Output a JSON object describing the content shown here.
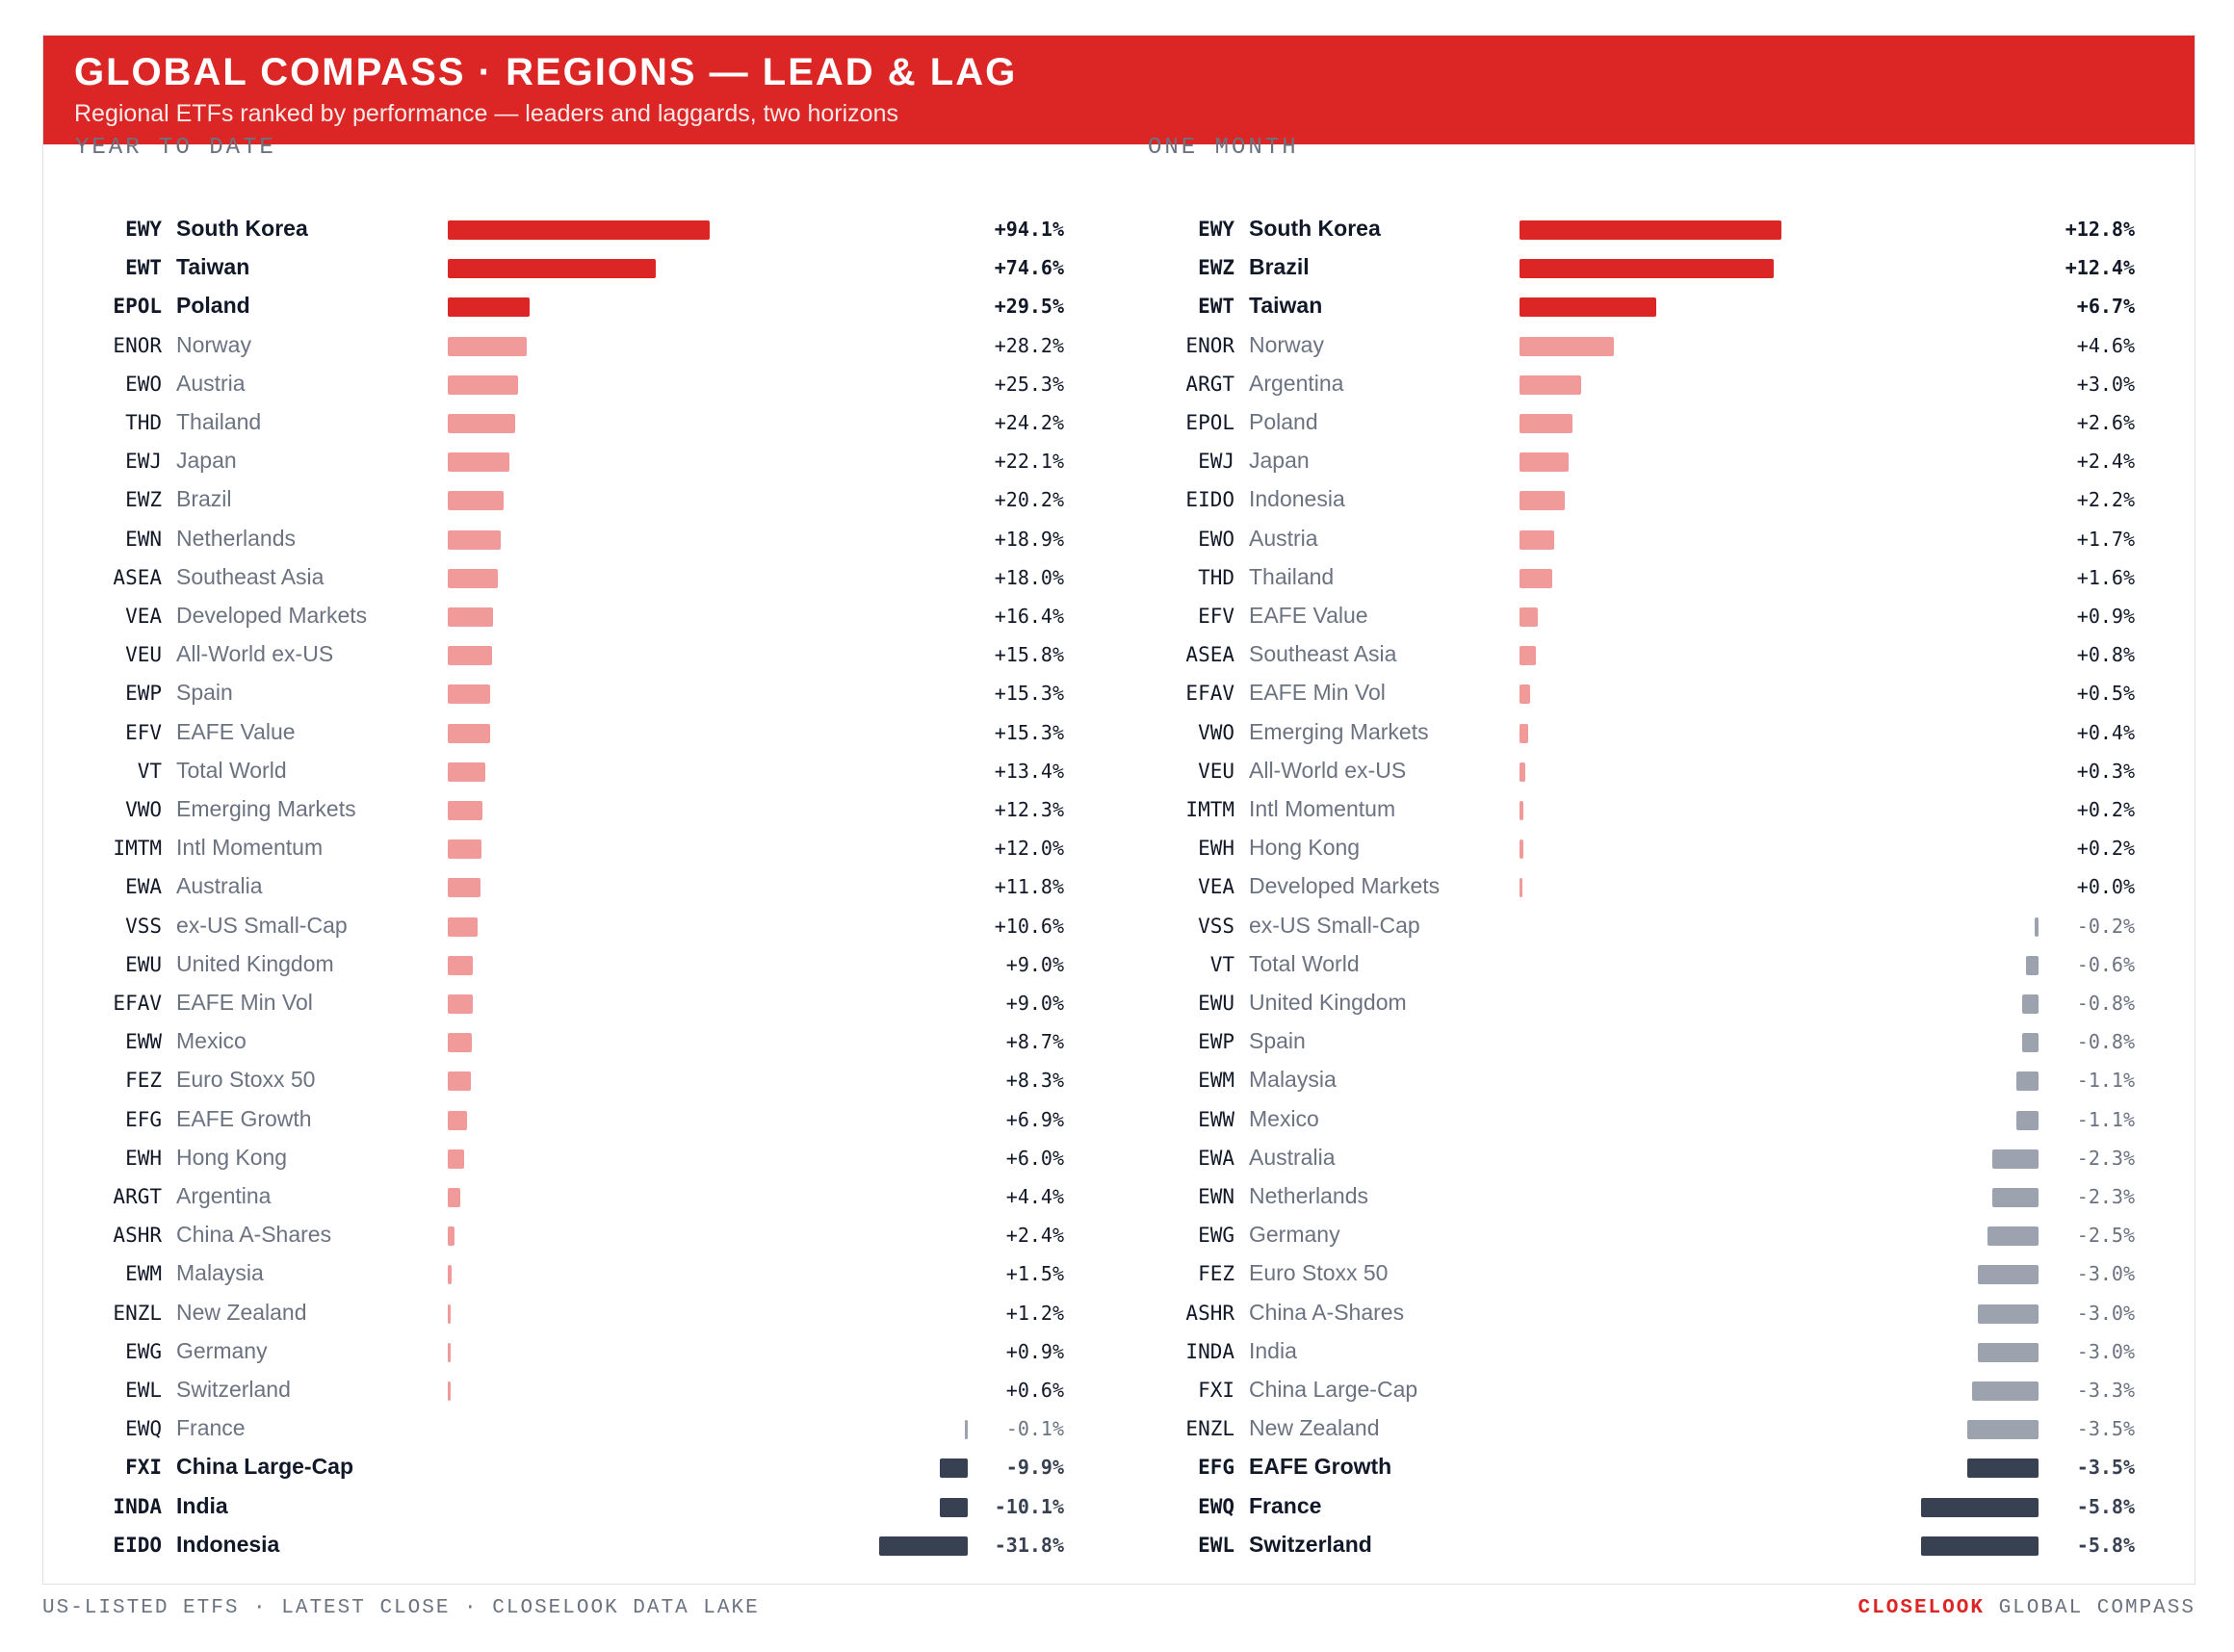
{
  "header": {
    "title": "GLOBAL COMPASS · REGIONS — LEAD & LAG",
    "subtitle": "Regional ETFs ranked by performance — leaders and laggards, two horizons"
  },
  "colors": {
    "header_bg": "#dc2626",
    "leader": "#dc2626",
    "positive": "#f09a9a",
    "negative": "#9ca3af",
    "laggard": "#374151"
  },
  "chart_data": [
    {
      "type": "bar",
      "title": "YEAR TO DATE",
      "unit": "%",
      "rows": [
        {
          "ticker": "EWY",
          "name": "South Korea",
          "value": 94.1,
          "label": "+94.1%"
        },
        {
          "ticker": "EWT",
          "name": "Taiwan",
          "value": 74.6,
          "label": "+74.6%"
        },
        {
          "ticker": "EPOL",
          "name": "Poland",
          "value": 29.5,
          "label": "+29.5%"
        },
        {
          "ticker": "ENOR",
          "name": "Norway",
          "value": 28.2,
          "label": "+28.2%"
        },
        {
          "ticker": "EWO",
          "name": "Austria",
          "value": 25.3,
          "label": "+25.3%"
        },
        {
          "ticker": "THD",
          "name": "Thailand",
          "value": 24.2,
          "label": "+24.2%"
        },
        {
          "ticker": "EWJ",
          "name": "Japan",
          "value": 22.1,
          "label": "+22.1%"
        },
        {
          "ticker": "EWZ",
          "name": "Brazil",
          "value": 20.2,
          "label": "+20.2%"
        },
        {
          "ticker": "EWN",
          "name": "Netherlands",
          "value": 18.9,
          "label": "+18.9%"
        },
        {
          "ticker": "ASEA",
          "name": "Southeast Asia",
          "value": 18.0,
          "label": "+18.0%"
        },
        {
          "ticker": "VEA",
          "name": "Developed Markets",
          "value": 16.4,
          "label": "+16.4%"
        },
        {
          "ticker": "VEU",
          "name": "All-World ex-US",
          "value": 15.8,
          "label": "+15.8%"
        },
        {
          "ticker": "EWP",
          "name": "Spain",
          "value": 15.3,
          "label": "+15.3%"
        },
        {
          "ticker": "EFV",
          "name": "EAFE Value",
          "value": 15.3,
          "label": "+15.3%"
        },
        {
          "ticker": "VT",
          "name": "Total World",
          "value": 13.4,
          "label": "+13.4%"
        },
        {
          "ticker": "VWO",
          "name": "Emerging Markets",
          "value": 12.3,
          "label": "+12.3%"
        },
        {
          "ticker": "IMTM",
          "name": "Intl Momentum",
          "value": 12.0,
          "label": "+12.0%"
        },
        {
          "ticker": "EWA",
          "name": "Australia",
          "value": 11.8,
          "label": "+11.8%"
        },
        {
          "ticker": "VSS",
          "name": "ex-US Small-Cap",
          "value": 10.6,
          "label": "+10.6%"
        },
        {
          "ticker": "EWU",
          "name": "United Kingdom",
          "value": 9.0,
          "label": "+9.0%"
        },
        {
          "ticker": "EFAV",
          "name": "EAFE Min Vol",
          "value": 9.0,
          "label": "+9.0%"
        },
        {
          "ticker": "EWW",
          "name": "Mexico",
          "value": 8.7,
          "label": "+8.7%"
        },
        {
          "ticker": "FEZ",
          "name": "Euro Stoxx 50",
          "value": 8.3,
          "label": "+8.3%"
        },
        {
          "ticker": "EFG",
          "name": "EAFE Growth",
          "value": 6.9,
          "label": "+6.9%"
        },
        {
          "ticker": "EWH",
          "name": "Hong Kong",
          "value": 6.0,
          "label": "+6.0%"
        },
        {
          "ticker": "ARGT",
          "name": "Argentina",
          "value": 4.4,
          "label": "+4.4%"
        },
        {
          "ticker": "ASHR",
          "name": "China A-Shares",
          "value": 2.4,
          "label": "+2.4%"
        },
        {
          "ticker": "EWM",
          "name": "Malaysia",
          "value": 1.5,
          "label": "+1.5%"
        },
        {
          "ticker": "ENZL",
          "name": "New Zealand",
          "value": 1.2,
          "label": "+1.2%"
        },
        {
          "ticker": "EWG",
          "name": "Germany",
          "value": 0.9,
          "label": "+0.9%"
        },
        {
          "ticker": "EWL",
          "name": "Switzerland",
          "value": 0.6,
          "label": "+0.6%"
        },
        {
          "ticker": "EWQ",
          "name": "France",
          "value": -0.1,
          "label": "-0.1%"
        },
        {
          "ticker": "FXI",
          "name": "China Large-Cap",
          "value": -9.9,
          "label": "-9.9%"
        },
        {
          "ticker": "INDA",
          "name": "India",
          "value": -10.1,
          "label": "-10.1%"
        },
        {
          "ticker": "EIDO",
          "name": "Indonesia",
          "value": -31.8,
          "label": "-31.8%"
        }
      ]
    },
    {
      "type": "bar",
      "title": "ONE MONTH",
      "unit": "%",
      "rows": [
        {
          "ticker": "EWY",
          "name": "South Korea",
          "value": 12.8,
          "label": "+12.8%"
        },
        {
          "ticker": "EWZ",
          "name": "Brazil",
          "value": 12.4,
          "label": "+12.4%"
        },
        {
          "ticker": "EWT",
          "name": "Taiwan",
          "value": 6.7,
          "label": "+6.7%"
        },
        {
          "ticker": "ENOR",
          "name": "Norway",
          "value": 4.6,
          "label": "+4.6%"
        },
        {
          "ticker": "ARGT",
          "name": "Argentina",
          "value": 3.0,
          "label": "+3.0%"
        },
        {
          "ticker": "EPOL",
          "name": "Poland",
          "value": 2.6,
          "label": "+2.6%"
        },
        {
          "ticker": "EWJ",
          "name": "Japan",
          "value": 2.4,
          "label": "+2.4%"
        },
        {
          "ticker": "EIDO",
          "name": "Indonesia",
          "value": 2.2,
          "label": "+2.2%"
        },
        {
          "ticker": "EWO",
          "name": "Austria",
          "value": 1.7,
          "label": "+1.7%"
        },
        {
          "ticker": "THD",
          "name": "Thailand",
          "value": 1.6,
          "label": "+1.6%"
        },
        {
          "ticker": "EFV",
          "name": "EAFE Value",
          "value": 0.9,
          "label": "+0.9%"
        },
        {
          "ticker": "ASEA",
          "name": "Southeast Asia",
          "value": 0.8,
          "label": "+0.8%"
        },
        {
          "ticker": "EFAV",
          "name": "EAFE Min Vol",
          "value": 0.5,
          "label": "+0.5%"
        },
        {
          "ticker": "VWO",
          "name": "Emerging Markets",
          "value": 0.4,
          "label": "+0.4%"
        },
        {
          "ticker": "VEU",
          "name": "All-World ex-US",
          "value": 0.3,
          "label": "+0.3%"
        },
        {
          "ticker": "IMTM",
          "name": "Intl Momentum",
          "value": 0.2,
          "label": "+0.2%"
        },
        {
          "ticker": "EWH",
          "name": "Hong Kong",
          "value": 0.2,
          "label": "+0.2%"
        },
        {
          "ticker": "VEA",
          "name": "Developed Markets",
          "value": 0.0,
          "label": "+0.0%"
        },
        {
          "ticker": "VSS",
          "name": "ex-US Small-Cap",
          "value": -0.2,
          "label": "-0.2%"
        },
        {
          "ticker": "VT",
          "name": "Total World",
          "value": -0.6,
          "label": "-0.6%"
        },
        {
          "ticker": "EWU",
          "name": "United Kingdom",
          "value": -0.8,
          "label": "-0.8%"
        },
        {
          "ticker": "EWP",
          "name": "Spain",
          "value": -0.8,
          "label": "-0.8%"
        },
        {
          "ticker": "EWM",
          "name": "Malaysia",
          "value": -1.1,
          "label": "-1.1%"
        },
        {
          "ticker": "EWW",
          "name": "Mexico",
          "value": -1.1,
          "label": "-1.1%"
        },
        {
          "ticker": "EWA",
          "name": "Australia",
          "value": -2.3,
          "label": "-2.3%"
        },
        {
          "ticker": "EWN",
          "name": "Netherlands",
          "value": -2.3,
          "label": "-2.3%"
        },
        {
          "ticker": "EWG",
          "name": "Germany",
          "value": -2.5,
          "label": "-2.5%"
        },
        {
          "ticker": "FEZ",
          "name": "Euro Stoxx 50",
          "value": -3.0,
          "label": "-3.0%"
        },
        {
          "ticker": "ASHR",
          "name": "China A-Shares",
          "value": -3.0,
          "label": "-3.0%"
        },
        {
          "ticker": "INDA",
          "name": "India",
          "value": -3.0,
          "label": "-3.0%"
        },
        {
          "ticker": "FXI",
          "name": "China Large-Cap",
          "value": -3.3,
          "label": "-3.3%"
        },
        {
          "ticker": "ENZL",
          "name": "New Zealand",
          "value": -3.5,
          "label": "-3.5%"
        },
        {
          "ticker": "EFG",
          "name": "EAFE Growth",
          "value": -3.5,
          "label": "-3.5%"
        },
        {
          "ticker": "EWQ",
          "name": "France",
          "value": -5.8,
          "label": "-5.8%"
        },
        {
          "ticker": "EWL",
          "name": "Switzerland",
          "value": -5.8,
          "label": "-5.8%"
        }
      ]
    }
  ],
  "footer": {
    "left": "US-LISTED ETFS · LATEST CLOSE · CLOSELOOK DATA LAKE",
    "brand": "CLOSELOOK",
    "right": "GLOBAL COMPASS"
  }
}
